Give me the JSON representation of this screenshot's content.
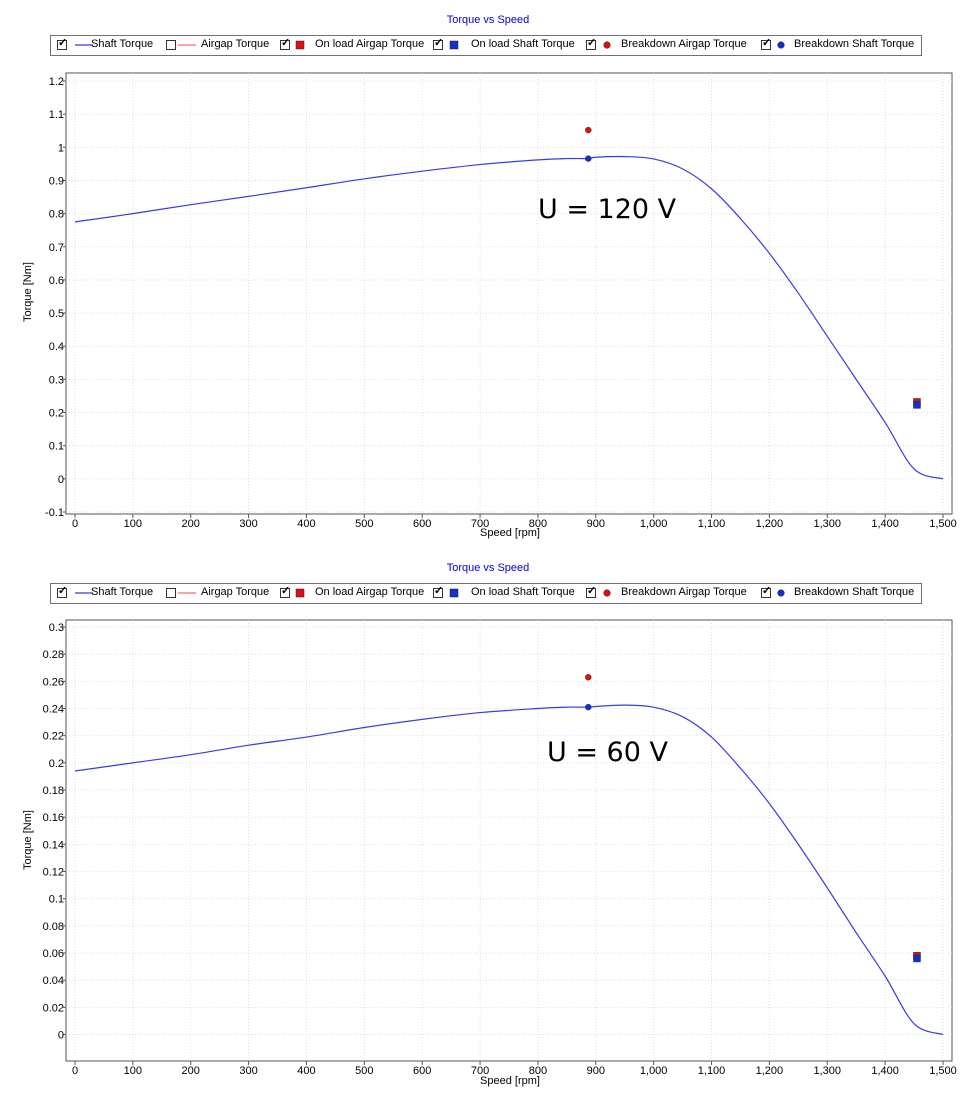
{
  "chart_data": [
    {
      "type": "line",
      "title": "Torque vs Speed",
      "xlabel": "Speed [rpm]",
      "ylabel": "Torque [Nm]",
      "annotation": "U = 120 V",
      "xlim": [
        0,
        1500
      ],
      "ylim": [
        -0.1,
        1.2
      ],
      "xticks": [
        0,
        100,
        200,
        300,
        400,
        500,
        600,
        700,
        800,
        900,
        1000,
        1100,
        1200,
        1300,
        1400,
        1500
      ],
      "xtick_labels": [
        "0",
        "100",
        "200",
        "300",
        "400",
        "500",
        "600",
        "700",
        "800",
        "900",
        "1,000",
        "1,100",
        "1,200",
        "1,300",
        "1,400",
        "1,500"
      ],
      "yticks": [
        -0.1,
        0,
        0.1,
        0.2,
        0.3,
        0.4,
        0.5,
        0.6,
        0.7,
        0.8,
        0.9,
        1,
        1.1,
        1.2
      ],
      "ytick_labels": [
        "-0.1",
        "0",
        "0.1",
        "0.2",
        "0.3",
        "0.4",
        "0.5",
        "0.6",
        "0.7",
        "0.8",
        "0.9",
        "1",
        "1.1",
        "1.2"
      ],
      "grid": true,
      "legend": [
        {
          "label": "Shaft Torque",
          "checked": true,
          "marker": "line",
          "color": "#3a3ae6"
        },
        {
          "label": "Airgap Torque",
          "checked": false,
          "marker": "line",
          "color": "#ff6a6a"
        },
        {
          "label": "On load Airgap Torque",
          "checked": true,
          "marker": "square",
          "color": "#e01010"
        },
        {
          "label": "On load Shaft Torque",
          "checked": true,
          "marker": "square",
          "color": "#1030d0"
        },
        {
          "label": "Breakdown Airgap Torque",
          "checked": true,
          "marker": "circle",
          "color": "#e01010"
        },
        {
          "label": "Breakdown Shaft Torque",
          "checked": true,
          "marker": "circle",
          "color": "#1030d0"
        }
      ],
      "series": [
        {
          "name": "Shaft Torque",
          "color": "#3a3ae6",
          "x": [
            0,
            100,
            200,
            300,
            400,
            500,
            600,
            700,
            800,
            850,
            887,
            900,
            950,
            1000,
            1050,
            1100,
            1150,
            1200,
            1250,
            1300,
            1350,
            1400,
            1450,
            1500
          ],
          "y": [
            0.775,
            0.8,
            0.827,
            0.852,
            0.878,
            0.905,
            0.928,
            0.948,
            0.962,
            0.966,
            0.966,
            0.97,
            0.972,
            0.965,
            0.935,
            0.875,
            0.785,
            0.68,
            0.56,
            0.43,
            0.3,
            0.17,
            0.03,
            0.0
          ]
        },
        {
          "name": "On load Airgap Torque",
          "x": [
            1455
          ],
          "y": [
            0.232
          ],
          "color": "#e01010",
          "marker": "square"
        },
        {
          "name": "On load Shaft Torque",
          "x": [
            1455
          ],
          "y": [
            0.223
          ],
          "color": "#1030d0",
          "marker": "square"
        },
        {
          "name": "Breakdown Airgap Torque",
          "x": [
            887
          ],
          "y": [
            1.052
          ],
          "color": "#e01010",
          "marker": "circle"
        },
        {
          "name": "Breakdown Shaft Torque",
          "x": [
            887
          ],
          "y": [
            0.966
          ],
          "color": "#1030d0",
          "marker": "circle"
        }
      ]
    },
    {
      "type": "line",
      "title": "Torque vs Speed",
      "xlabel": "Speed [rpm]",
      "ylabel": "Torque [Nm]",
      "annotation": "U = 60 V",
      "xlim": [
        0,
        1500
      ],
      "ylim": [
        -0.018,
        0.3
      ],
      "xticks": [
        0,
        100,
        200,
        300,
        400,
        500,
        600,
        700,
        800,
        900,
        1000,
        1100,
        1200,
        1300,
        1400,
        1500
      ],
      "xtick_labels": [
        "0",
        "100",
        "200",
        "300",
        "400",
        "500",
        "600",
        "700",
        "800",
        "900",
        "1,000",
        "1,100",
        "1,200",
        "1,300",
        "1,400",
        "1,500"
      ],
      "yticks": [
        0,
        0.02,
        0.04,
        0.06,
        0.08,
        0.1,
        0.12,
        0.14,
        0.16,
        0.18,
        0.2,
        0.22,
        0.24,
        0.26,
        0.28,
        0.3
      ],
      "ytick_labels": [
        "0",
        "0.02",
        "0.04",
        "0.06",
        "0.08",
        "0.1",
        "0.12",
        "0.14",
        "0.16",
        "0.18",
        "0.2",
        "0.22",
        "0.24",
        "0.26",
        "0.28",
        "0.3"
      ],
      "grid": true,
      "legend": [
        {
          "label": "Shaft Torque",
          "checked": true,
          "marker": "line",
          "color": "#3a3ae6"
        },
        {
          "label": "Airgap Torque",
          "checked": false,
          "marker": "line",
          "color": "#ff6a6a"
        },
        {
          "label": "On load Airgap Torque",
          "checked": true,
          "marker": "square",
          "color": "#e01010"
        },
        {
          "label": "On load Shaft Torque",
          "checked": true,
          "marker": "square",
          "color": "#1030d0"
        },
        {
          "label": "Breakdown Airgap Torque",
          "checked": true,
          "marker": "circle",
          "color": "#e01010"
        },
        {
          "label": "Breakdown Shaft Torque",
          "checked": true,
          "marker": "circle",
          "color": "#1030d0"
        }
      ],
      "series": [
        {
          "name": "Shaft Torque",
          "color": "#3a3ae6",
          "x": [
            0,
            100,
            200,
            300,
            400,
            500,
            600,
            700,
            800,
            850,
            887,
            900,
            950,
            1000,
            1050,
            1100,
            1150,
            1200,
            1250,
            1300,
            1350,
            1400,
            1450,
            1500
          ],
          "y": [
            0.194,
            0.2,
            0.206,
            0.213,
            0.219,
            0.226,
            0.232,
            0.237,
            0.24,
            0.241,
            0.241,
            0.2415,
            0.2425,
            0.241,
            0.234,
            0.219,
            0.196,
            0.17,
            0.14,
            0.108,
            0.075,
            0.043,
            0.008,
            0.0
          ]
        },
        {
          "name": "On load Airgap Torque",
          "x": [
            1455
          ],
          "y": [
            0.058
          ],
          "color": "#e01010",
          "marker": "square"
        },
        {
          "name": "On load Shaft Torque",
          "x": [
            1455
          ],
          "y": [
            0.056
          ],
          "color": "#1030d0",
          "marker": "square"
        },
        {
          "name": "Breakdown Airgap Torque",
          "x": [
            887
          ],
          "y": [
            0.263
          ],
          "color": "#e01010",
          "marker": "circle"
        },
        {
          "name": "Breakdown Shaft Torque",
          "x": [
            887
          ],
          "y": [
            0.241
          ],
          "color": "#1030d0",
          "marker": "circle"
        }
      ]
    }
  ]
}
